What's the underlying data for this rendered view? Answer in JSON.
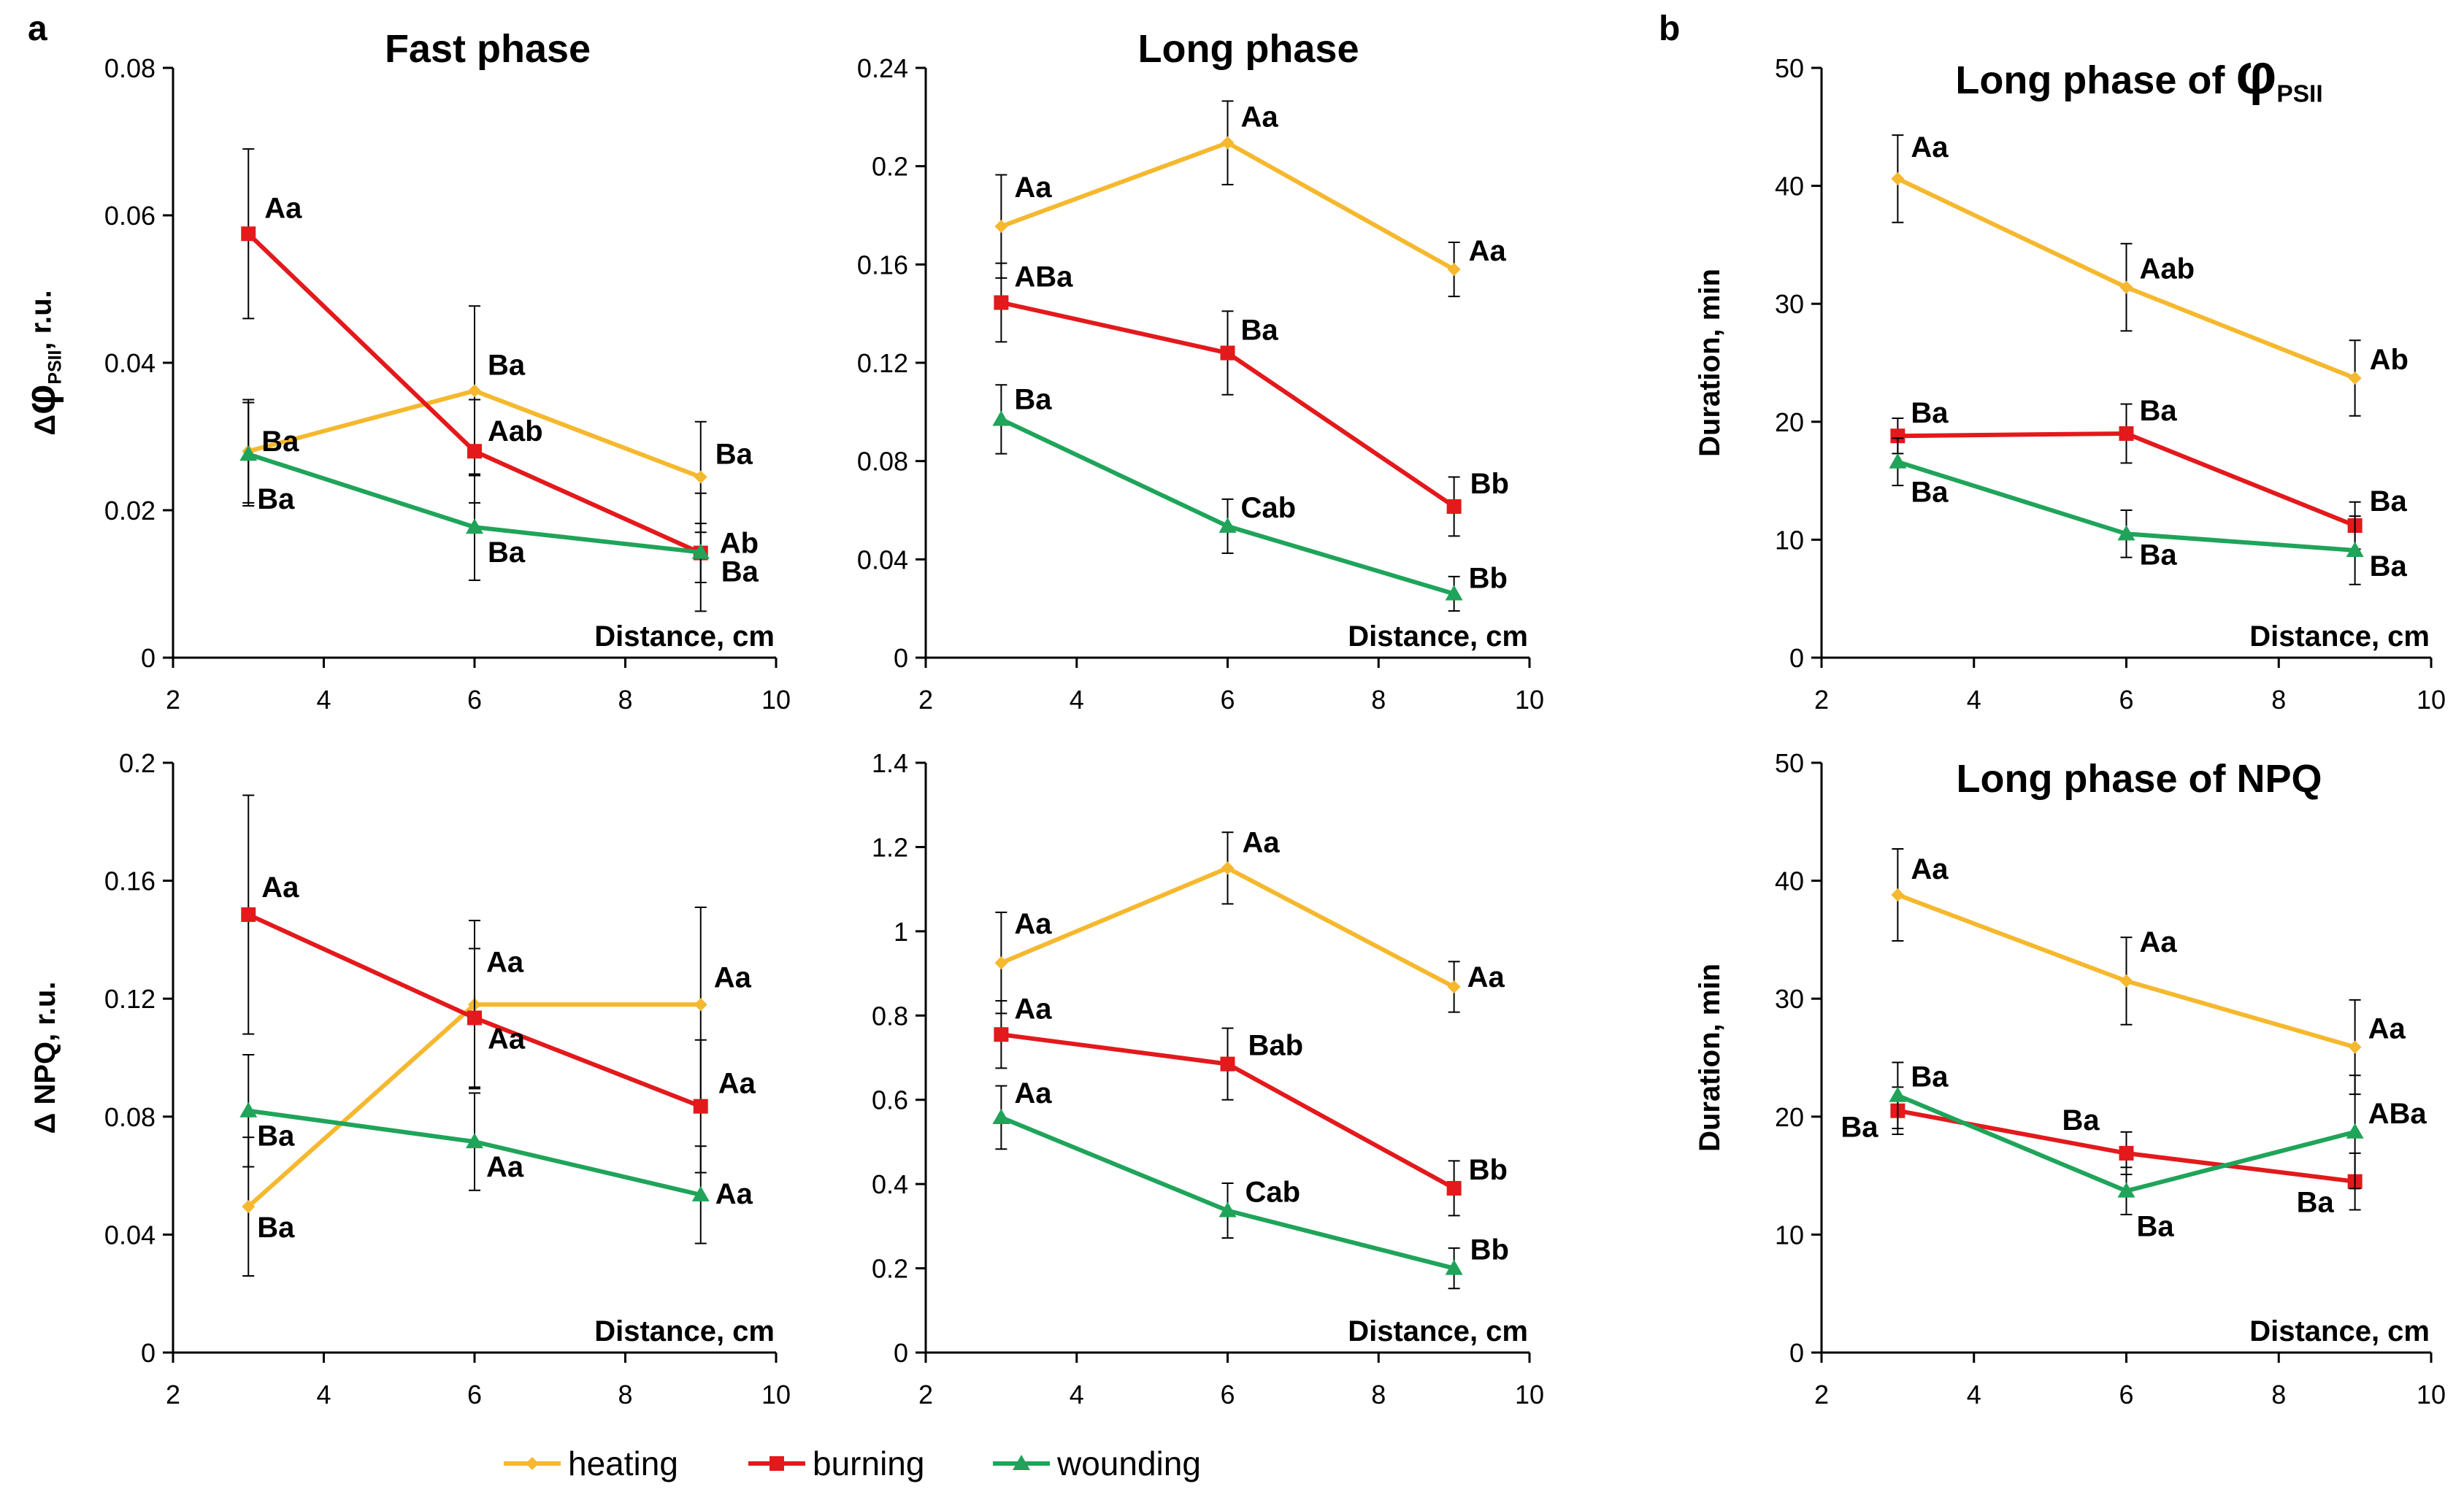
{
  "figure_labels": {
    "a": "a",
    "b": "b"
  },
  "legend": [
    {
      "name": "heating",
      "color": "#F5B82E",
      "marker": "diamond"
    },
    {
      "name": "burning",
      "color": "#E3191C",
      "marker": "square"
    },
    {
      "name": "wounding",
      "color": "#1FA45A",
      "marker": "triangle"
    }
  ],
  "chart_data": [
    {
      "type": "line",
      "title": "Fast phase",
      "xlabel": "Distance, cm",
      "ylabel": {
        "prefix": "Δ",
        "symbol": "φ",
        "subscript": "PSII",
        "suffix": ", r.u."
      },
      "x": [
        3,
        6,
        9
      ],
      "xlim": [
        2,
        10
      ],
      "xticks": [
        2,
        4,
        6,
        8,
        10
      ],
      "ylim": [
        0,
        0.08
      ],
      "yticks": [
        0,
        0.02,
        0.04,
        0.06,
        0.08
      ],
      "ytick_labels": [
        "0",
        "0.02",
        "0.04",
        "0.06",
        "0.08"
      ],
      "series": [
        {
          "name": "heating",
          "values": [
            0.028,
            0.0362,
            0.0245
          ],
          "errors": [
            0.007,
            0.0115,
            0.0075
          ],
          "labels": [
            "Ba",
            "Ba",
            "Ba"
          ]
        },
        {
          "name": "burning",
          "values": [
            0.0575,
            0.028,
            0.0142
          ],
          "errors": [
            0.0115,
            0.007,
            0.004
          ],
          "labels": [
            "Aa",
            "Aab",
            "Ab"
          ]
        },
        {
          "name": "wounding",
          "values": [
            0.0276,
            0.0177,
            0.0143
          ],
          "errors": [
            0.007,
            0.0072,
            0.008
          ],
          "labels": [
            "Ba",
            "Ba",
            "Ba"
          ]
        }
      ]
    },
    {
      "type": "line",
      "title": "Long phase",
      "xlabel": "Distance, cm",
      "ylabel": null,
      "x": [
        3,
        6,
        9
      ],
      "xlim": [
        2,
        10
      ],
      "xticks": [
        2,
        4,
        6,
        8,
        10
      ],
      "ylim": [
        0,
        0.24
      ],
      "yticks": [
        0,
        0.04,
        0.08,
        0.12,
        0.16,
        0.2,
        0.24
      ],
      "ytick_labels": [
        "0",
        "0.04",
        "0.08",
        "0.12",
        "0.16",
        "0.2",
        "0.24"
      ],
      "series": [
        {
          "name": "heating",
          "values": [
            0.1755,
            0.2095,
            0.158
          ],
          "errors": [
            0.021,
            0.017,
            0.011
          ],
          "labels": [
            "Aa",
            "Aa",
            "Aa"
          ]
        },
        {
          "name": "burning",
          "values": [
            0.1445,
            0.124,
            0.0615
          ],
          "errors": [
            0.016,
            0.017,
            0.012
          ],
          "labels": [
            "ABa",
            "Ba",
            "Bb"
          ]
        },
        {
          "name": "wounding",
          "values": [
            0.097,
            0.0535,
            0.026
          ],
          "errors": [
            0.014,
            0.011,
            0.007
          ],
          "labels": [
            "Ba",
            "Cab",
            "Bb"
          ]
        }
      ]
    },
    {
      "type": "line",
      "title": {
        "prefix": "Long phase of ",
        "symbol": "φ",
        "subscript": "PSII"
      },
      "xlabel": "Distance, cm",
      "ylabel": "Duration, min",
      "x": [
        3,
        6,
        9
      ],
      "xlim": [
        2,
        10
      ],
      "xticks": [
        2,
        4,
        6,
        8,
        10
      ],
      "ylim": [
        0,
        50
      ],
      "yticks": [
        0,
        10,
        20,
        30,
        40,
        50
      ],
      "ytick_labels": [
        "0",
        "10",
        "20",
        "30",
        "40",
        "50"
      ],
      "series": [
        {
          "name": "heating",
          "values": [
            40.6,
            31.4,
            23.7
          ],
          "errors": [
            3.7,
            3.7,
            3.2
          ],
          "labels": [
            "Aa",
            "Aab",
            "Ab"
          ]
        },
        {
          "name": "burning",
          "values": [
            18.8,
            19.0,
            11.2
          ],
          "errors": [
            1.5,
            2.5,
            2.0
          ],
          "labels": [
            "Ba",
            "Ba",
            "Ba"
          ]
        },
        {
          "name": "wounding",
          "values": [
            16.6,
            10.5,
            9.1
          ],
          "errors": [
            2.0,
            2.0,
            2.9
          ],
          "labels": [
            "Ba",
            "Ba",
            "Ba"
          ]
        }
      ]
    },
    {
      "type": "line",
      "title": null,
      "xlabel": "Distance, cm",
      "ylabel": "Δ NPQ, r.u.",
      "x": [
        3,
        6,
        9
      ],
      "xlim": [
        2,
        10
      ],
      "xticks": [
        2,
        4,
        6,
        8,
        10
      ],
      "ylim": [
        0,
        0.2
      ],
      "yticks": [
        0,
        0.04,
        0.08,
        0.12,
        0.16,
        0.2
      ],
      "ytick_labels": [
        "0",
        "0.04",
        "0.08",
        "0.12",
        "0.16",
        "0.2"
      ],
      "series": [
        {
          "name": "heating",
          "values": [
            0.0495,
            0.118,
            0.118
          ],
          "errors": [
            0.0235,
            0.0285,
            0.033
          ],
          "labels": [
            "Ba",
            "Aa",
            "Aa"
          ]
        },
        {
          "name": "burning",
          "values": [
            0.1485,
            0.1135,
            0.0835
          ],
          "errors": [
            0.0405,
            0.0235,
            0.0225
          ],
          "labels": [
            "Aa",
            "Aa",
            "Aa"
          ]
        },
        {
          "name": "wounding",
          "values": [
            0.082,
            0.0715,
            0.0535
          ],
          "errors": [
            0.019,
            0.0165,
            0.0165
          ],
          "labels": [
            "Ba",
            "Aa",
            "Aa"
          ]
        }
      ]
    },
    {
      "type": "line",
      "title": null,
      "xlabel": "Distance, cm",
      "ylabel": null,
      "x": [
        3,
        6,
        9
      ],
      "xlim": [
        2,
        10
      ],
      "xticks": [
        2,
        4,
        6,
        8,
        10
      ],
      "ylim": [
        0,
        1.4
      ],
      "yticks": [
        0,
        0.2,
        0.4,
        0.6,
        0.8,
        1,
        1.2,
        1.4
      ],
      "ytick_labels": [
        "0",
        "0.2",
        "0.4",
        "0.6",
        "0.8",
        "1",
        "1.2",
        "1.4"
      ],
      "series": [
        {
          "name": "heating",
          "values": [
            0.925,
            1.15,
            0.868
          ],
          "errors": [
            0.12,
            0.085,
            0.06
          ],
          "labels": [
            "Aa",
            "Aa",
            "Aa"
          ]
        },
        {
          "name": "burning",
          "values": [
            0.755,
            0.685,
            0.39
          ],
          "errors": [
            0.08,
            0.085,
            0.065
          ],
          "labels": [
            "Aa",
            "Bab",
            "Bb"
          ]
        },
        {
          "name": "wounding",
          "values": [
            0.558,
            0.337,
            0.2
          ],
          "errors": [
            0.075,
            0.065,
            0.048
          ],
          "labels": [
            "Aa",
            "Cab",
            "Bb"
          ]
        }
      ]
    },
    {
      "type": "line",
      "title": "Long phase of NPQ",
      "xlabel": "Distance, cm",
      "ylabel": "Duration, min",
      "x": [
        3,
        6,
        9
      ],
      "xlim": [
        2,
        10
      ],
      "xticks": [
        2,
        4,
        6,
        8,
        10
      ],
      "ylim": [
        0,
        50
      ],
      "yticks": [
        0,
        10,
        20,
        30,
        40,
        50
      ],
      "ytick_labels": [
        "0",
        "10",
        "20",
        "30",
        "40",
        "50"
      ],
      "series": [
        {
          "name": "heating",
          "values": [
            38.8,
            31.5,
            25.9
          ],
          "errors": [
            3.9,
            3.7,
            4.0
          ],
          "labels": [
            "Aa",
            "Aa",
            "Aa"
          ]
        },
        {
          "name": "burning",
          "values": [
            20.5,
            16.9,
            14.5
          ],
          "errors": [
            2.0,
            1.8,
            2.4
          ],
          "labels": [
            "Ba",
            "Ba",
            "Ba"
          ]
        },
        {
          "name": "wounding",
          "values": [
            21.8,
            13.7,
            18.7
          ],
          "errors": [
            2.8,
            2.0,
            4.8
          ],
          "labels": [
            "Ba",
            "Ba",
            "ABa"
          ]
        }
      ]
    }
  ]
}
